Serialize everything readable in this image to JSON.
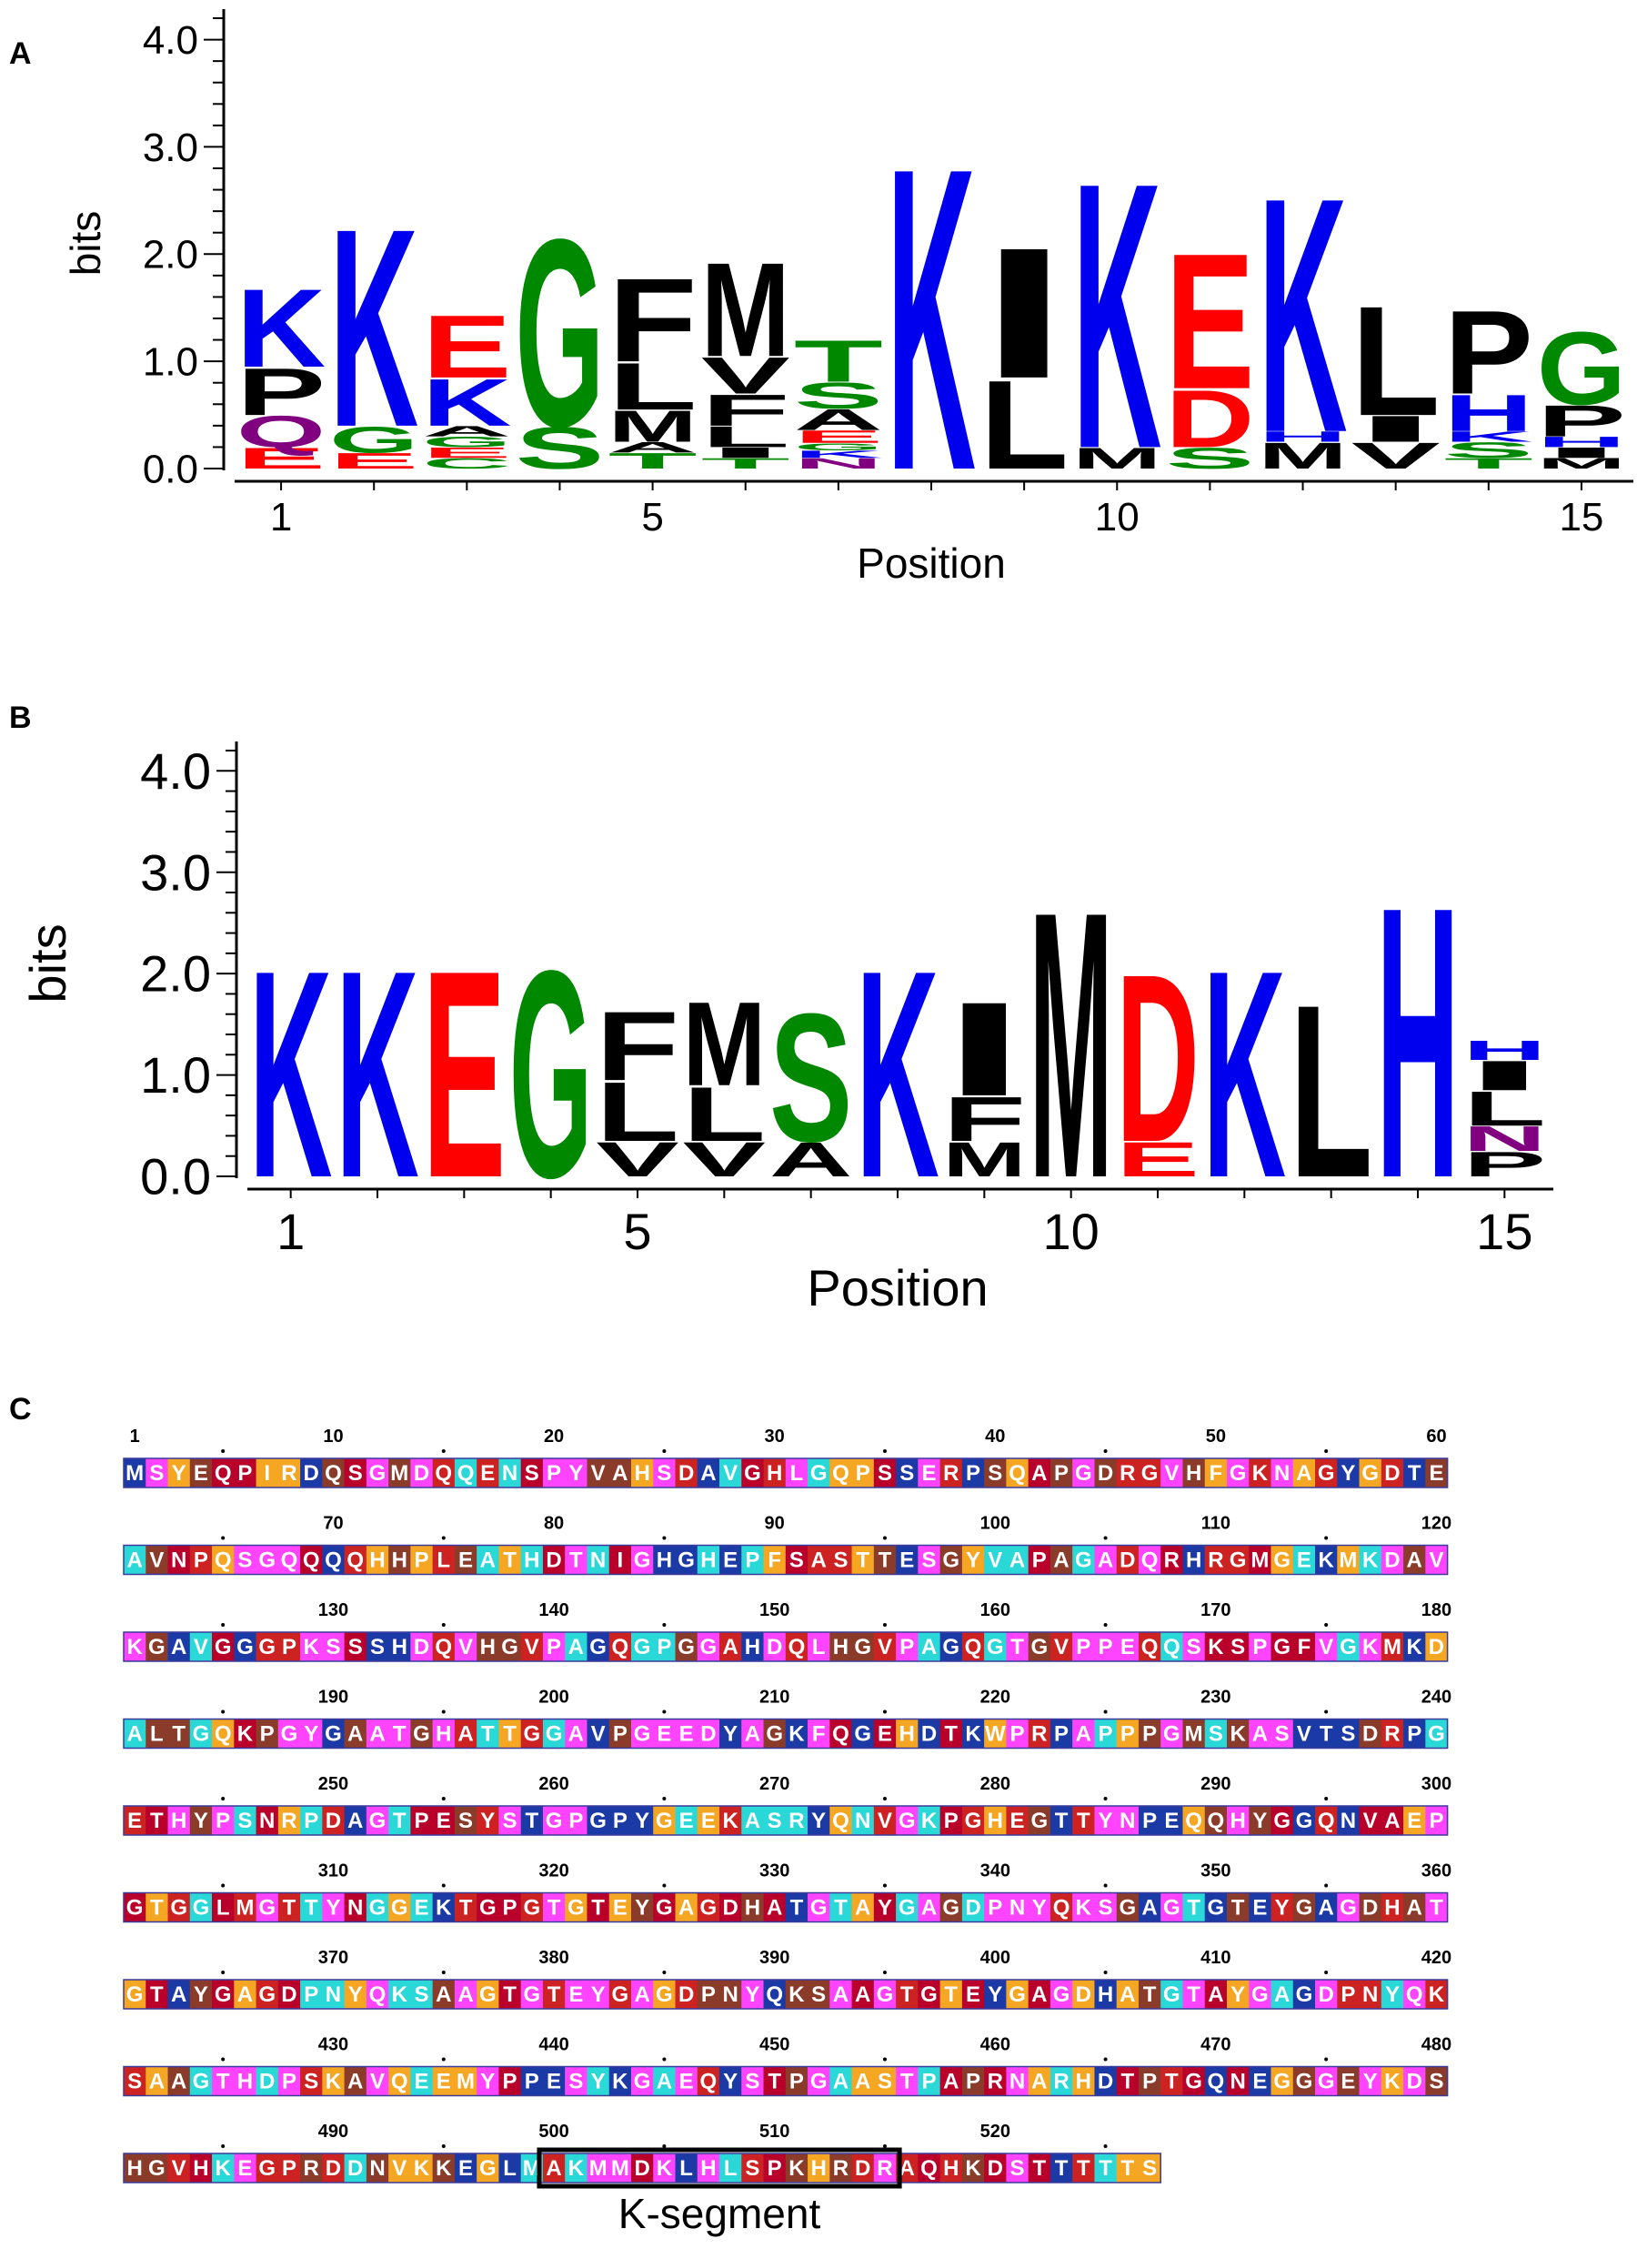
{
  "panels": {
    "a": {
      "label": "A"
    },
    "b": {
      "label": "B"
    },
    "c": {
      "label": "C"
    }
  },
  "chart_data": [
    {
      "type": "sequence-logo",
      "ylabel": "bits",
      "xlabel": "Position",
      "ylim": [
        0,
        4.2
      ],
      "yticks": [
        "0.0",
        "1.0",
        "2.0",
        "3.0",
        "4.0"
      ],
      "xticks": [
        "1",
        "5",
        "10",
        "15"
      ],
      "positions": [
        {
          "pos": 1,
          "stack": [
            [
              "E",
              0.2
            ],
            [
              "Q",
              0.3
            ],
            [
              "P",
              0.45
            ],
            [
              "K",
              0.75
            ]
          ]
        },
        {
          "pos": 2,
          "stack": [
            [
              "E",
              0.15
            ],
            [
              "G",
              0.25
            ],
            [
              "K",
              1.9
            ]
          ]
        },
        {
          "pos": 3,
          "stack": [
            [
              "C",
              0.1
            ],
            [
              "E",
              0.1
            ],
            [
              "G",
              0.1
            ],
            [
              "A",
              0.1
            ],
            [
              "K",
              0.45
            ],
            [
              "E",
              0.6
            ]
          ]
        },
        {
          "pos": 4,
          "stack": [
            [
              "S",
              0.4
            ],
            [
              "G",
              1.8
            ]
          ]
        },
        {
          "pos": 5,
          "stack": [
            [
              "T",
              0.15
            ],
            [
              "A",
              0.1
            ],
            [
              "M",
              0.3
            ],
            [
              "L",
              0.45
            ],
            [
              "F",
              0.8
            ]
          ]
        },
        {
          "pos": 6,
          "stack": [
            [
              "T",
              0.1
            ],
            [
              "I",
              0.1
            ],
            [
              "L",
              0.2
            ],
            [
              "F",
              0.3
            ],
            [
              "V",
              0.35
            ],
            [
              "M",
              0.9
            ]
          ]
        },
        {
          "pos": 7,
          "stack": [
            [
              "N",
              0.1
            ],
            [
              "K",
              0.07
            ],
            [
              "G",
              0.07
            ],
            [
              "E",
              0.12
            ],
            [
              "A",
              0.2
            ],
            [
              "S",
              0.25
            ],
            [
              "T",
              0.4
            ]
          ]
        },
        {
          "pos": 8,
          "stack": [
            [
              "K",
              2.9
            ]
          ]
        },
        {
          "pos": 9,
          "stack": [
            [
              "L",
              0.85
            ],
            [
              "I",
              1.25
            ]
          ]
        },
        {
          "pos": 10,
          "stack": [
            [
              "M",
              0.2
            ],
            [
              "K",
              2.55
            ]
          ]
        },
        {
          "pos": 11,
          "stack": [
            [
              "S",
              0.2
            ],
            [
              "D",
              0.55
            ],
            [
              "E",
              1.3
            ]
          ]
        },
        {
          "pos": 12,
          "stack": [
            [
              "M",
              0.25
            ],
            [
              "H",
              0.1
            ],
            [
              "K",
              2.25
            ]
          ]
        },
        {
          "pos": 13,
          "stack": [
            [
              "V",
              0.25
            ],
            [
              "I",
              0.25
            ],
            [
              "L",
              1.05
            ]
          ]
        },
        {
          "pos": 14,
          "stack": [
            [
              "T",
              0.1
            ],
            [
              "S",
              0.15
            ],
            [
              "K",
              0.1
            ],
            [
              "H",
              0.35
            ],
            [
              "P",
              0.8
            ]
          ]
        },
        {
          "pos": 15,
          "stack": [
            [
              "M",
              0.1
            ],
            [
              "I",
              0.1
            ],
            [
              "H",
              0.1
            ],
            [
              "P",
              0.3
            ],
            [
              "G",
              0.7
            ]
          ]
        }
      ]
    },
    {
      "type": "sequence-logo",
      "ylabel": "bits",
      "xlabel": "Position",
      "ylim": [
        0,
        4.2
      ],
      "yticks": [
        "0.0",
        "1.0",
        "2.0",
        "3.0",
        "4.0"
      ],
      "xticks": [
        "1",
        "5",
        "10",
        "15"
      ],
      "positions": [
        {
          "pos": 1,
          "stack": [
            [
              "K",
              2.1
            ]
          ]
        },
        {
          "pos": 2,
          "stack": [
            [
              "K",
              2.1
            ]
          ]
        },
        {
          "pos": 3,
          "stack": [
            [
              "E",
              2.1
            ]
          ]
        },
        {
          "pos": 4,
          "stack": [
            [
              "G",
              2.1
            ]
          ]
        },
        {
          "pos": 5,
          "stack": [
            [
              "V",
              0.35
            ],
            [
              "L",
              0.6
            ],
            [
              "F",
              0.7
            ]
          ]
        },
        {
          "pos": 6,
          "stack": [
            [
              "V",
              0.35
            ],
            [
              "L",
              0.55
            ],
            [
              "M",
              0.85
            ]
          ]
        },
        {
          "pos": 7,
          "stack": [
            [
              "A",
              0.35
            ],
            [
              "S",
              1.3
            ]
          ]
        },
        {
          "pos": 8,
          "stack": [
            [
              "K",
              2.1
            ]
          ]
        },
        {
          "pos": 9,
          "stack": [
            [
              "M",
              0.35
            ],
            [
              "F",
              0.45
            ],
            [
              "I",
              0.95
            ]
          ]
        },
        {
          "pos": 10,
          "stack": [
            [
              "M",
              2.7
            ]
          ]
        },
        {
          "pos": 11,
          "stack": [
            [
              "E",
              0.35
            ],
            [
              "D",
              1.7
            ]
          ]
        },
        {
          "pos": 12,
          "stack": [
            [
              "K",
              2.1
            ]
          ]
        },
        {
          "pos": 13,
          "stack": [
            [
              "L",
              1.75
            ]
          ]
        },
        {
          "pos": 14,
          "stack": [
            [
              "H",
              2.75
            ]
          ]
        },
        {
          "pos": 15,
          "stack": [
            [
              "P",
              0.25
            ],
            [
              "N",
              0.25
            ],
            [
              "L",
              0.35
            ],
            [
              "I",
              0.3
            ],
            [
              "H",
              0.2
            ]
          ]
        }
      ]
    }
  ],
  "colors": {
    "K": "#0000ee",
    "R": "#0000ee",
    "H": "#0000ee",
    "E": "#ff0000",
    "D": "#ff0000",
    "G": "#008800",
    "S": "#008800",
    "T": "#008800",
    "C": "#008800",
    "Y": "#008800",
    "Q": "#800080",
    "N": "#800080",
    "A": "#000000",
    "V": "#000000",
    "L": "#000000",
    "I": "#000000",
    "M": "#000000",
    "F": "#000000",
    "P": "#000000",
    "W": "#000000",
    "outline": "#000000"
  },
  "sequence": {
    "residues": "MSYEQPIRDQSGMDQQENSPYVAHSDAVGHLGQPSSERPSQAPGDRGVHFGKNAGYGDTEAVNPQSGQQQQHHPLEATHDTNIGHGHEPFSASTTESGYVAPAGADQRHRGMGEKMKDAVKGAVGGGPKSSSHDQVHGVPAGQGPGGAHDQLHGVPAGQGTGVPPEQQSKSPGFVGKMKDALTGQKPGYGAATGHATTGGAVPGEEDYAGKFQGEHDTKWPRPAPPPGMSKASVTSDRPGETHYPSNRPDAGTPESYSTGPGPYGEEKASRYQNVGKPGHEGTTYNPEQQHYGGQNVAEPGTGGLMGTTYNGGEKTGPGTGTEYGAGDHATGTAYGAGDPNYQKSGAGTGTEYGAGDHATGTAYGAGDPNYQKSAAGTGTEYGAGDPNYQKSAAGTGTEYGAGDHATGTAYGAGDPNYQKSAAGTHDPSKAVQEEMYPPESYKGAEQYSTPGAASTPAPRNARHDTPTGQNEGGGEYKDSHGVHKEGPRDDNVKKEGLMAKMMDKLHLSPKHRDRAQHKDSTTTTTS",
    "per_row": 60,
    "box_label": "K-segment",
    "box_start": 500,
    "box_end": 515,
    "residue_colors": {
      "bg_cycle": [
        "#ff44ff",
        "#b8002a",
        "#1c3aa6",
        "#cc2222",
        "#2ad8d8",
        "#f5a623",
        "#8a3b2a",
        "#ff44ff"
      ]
    }
  }
}
